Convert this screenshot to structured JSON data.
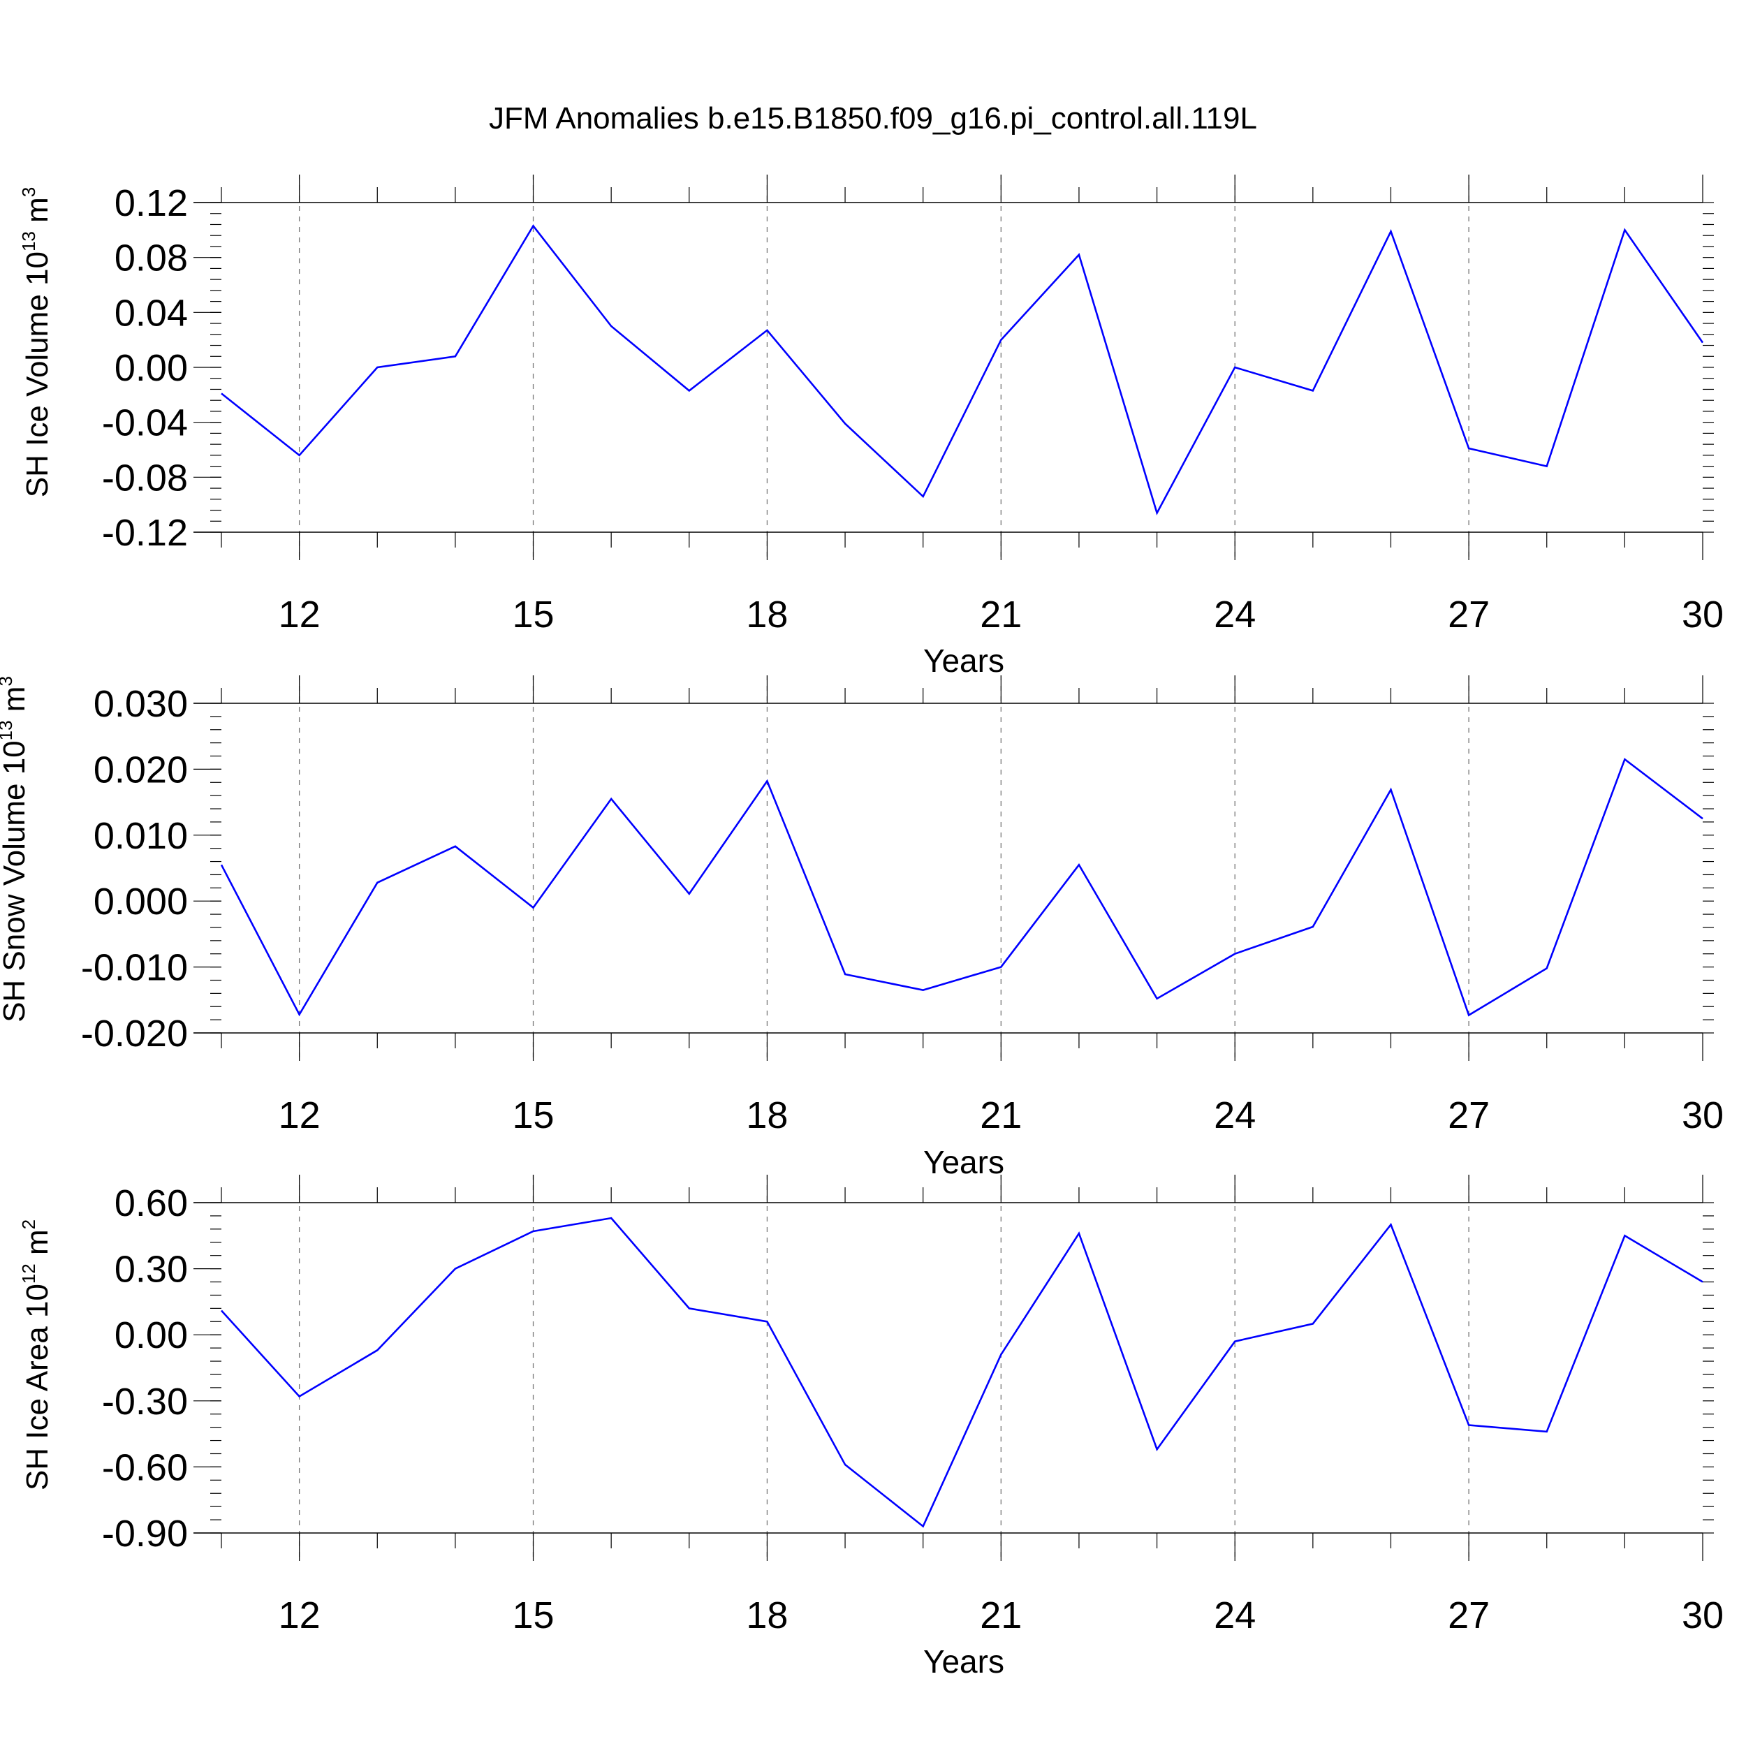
{
  "title": "JFM Anomalies b.e15.B1850.f09_g16.pi_control.all.119L",
  "colors": {
    "line": "#0000ff",
    "grid": "#777777",
    "axis": "#000000"
  },
  "chart_data": [
    {
      "type": "line",
      "ylabel": {
        "main": "SH Ice Volume 10",
        "exp": "13",
        "unit": " m",
        "unit_exp": "3"
      },
      "xlabel": "Years",
      "x": [
        11,
        12,
        13,
        14,
        15,
        16,
        17,
        18,
        19,
        20,
        21,
        22,
        23,
        24,
        25,
        26,
        27,
        28,
        29,
        30
      ],
      "values": [
        -0.019,
        -0.064,
        0.0,
        0.008,
        0.103,
        0.03,
        -0.017,
        0.027,
        -0.041,
        -0.094,
        0.02,
        0.082,
        -0.106,
        0.0,
        -0.017,
        0.099,
        -0.059,
        -0.072,
        0.1,
        0.018
      ],
      "xlim": [
        11,
        30
      ],
      "ylim": [
        -0.12,
        0.12
      ],
      "xticks": [
        12,
        15,
        18,
        21,
        24,
        27,
        30
      ],
      "yticks": [
        "0.12",
        "0.08",
        "0.04",
        "0.00",
        "-0.04",
        "-0.08",
        "-0.12"
      ],
      "ytick_values": [
        0.12,
        0.08,
        0.04,
        0.0,
        -0.04,
        -0.08,
        -0.12
      ],
      "minor_step": 0.008
    },
    {
      "type": "line",
      "ylabel": {
        "main": "SH Snow Volume 10",
        "exp": "13",
        "unit": " m",
        "unit_exp": "3"
      },
      "xlabel": "Years",
      "x": [
        11,
        12,
        13,
        14,
        15,
        16,
        17,
        18,
        19,
        20,
        21,
        22,
        23,
        24,
        25,
        26,
        27,
        28,
        29,
        30
      ],
      "values": [
        0.0055,
        -0.0172,
        0.0028,
        0.0083,
        -0.001,
        0.0155,
        0.0011,
        0.0182,
        -0.0111,
        -0.0135,
        -0.01,
        0.0055,
        -0.0148,
        -0.008,
        -0.0039,
        0.0169,
        -0.0173,
        -0.0102,
        0.0215,
        0.0125
      ],
      "xlim": [
        11,
        30
      ],
      "ylim": [
        -0.02,
        0.03
      ],
      "xticks": [
        12,
        15,
        18,
        21,
        24,
        27,
        30
      ],
      "yticks": [
        "0.030",
        "0.020",
        "0.010",
        "0.000",
        "-0.010",
        "-0.020"
      ],
      "ytick_values": [
        0.03,
        0.02,
        0.01,
        0.0,
        -0.01,
        -0.02
      ],
      "minor_step": 0.002
    },
    {
      "type": "line",
      "ylabel": {
        "main": "SH Ice Area 10",
        "exp": "12",
        "unit": " m",
        "unit_exp": "2"
      },
      "xlabel": "Years",
      "x": [
        11,
        12,
        13,
        14,
        15,
        16,
        17,
        18,
        19,
        20,
        21,
        22,
        23,
        24,
        25,
        26,
        27,
        28,
        29,
        30
      ],
      "values": [
        0.11,
        -0.28,
        -0.07,
        0.3,
        0.47,
        0.53,
        0.12,
        0.06,
        -0.59,
        -0.87,
        -0.09,
        0.46,
        -0.52,
        -0.03,
        0.05,
        0.5,
        -0.41,
        -0.44,
        0.45,
        0.24
      ],
      "xlim": [
        11,
        30
      ],
      "ylim": [
        -0.9,
        0.6
      ],
      "xticks": [
        12,
        15,
        18,
        21,
        24,
        27,
        30
      ],
      "yticks": [
        "0.60",
        "0.30",
        "0.00",
        "-0.30",
        "-0.60",
        "-0.90"
      ],
      "ytick_values": [
        0.6,
        0.3,
        0.0,
        -0.3,
        -0.6,
        -0.9
      ],
      "minor_step": 0.06
    }
  ]
}
